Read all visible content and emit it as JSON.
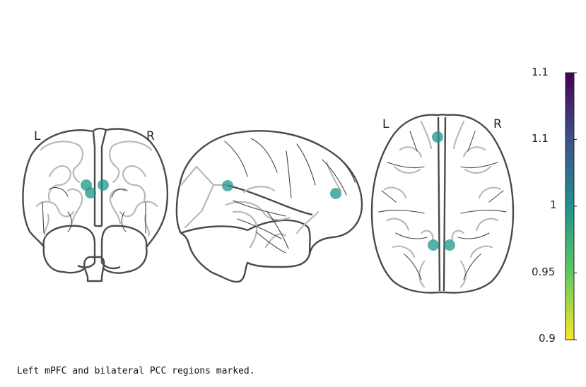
{
  "views": {
    "coronal": {
      "left_label": "L",
      "right_label": "R"
    },
    "sagittal": {},
    "axial": {
      "left_label": "L",
      "right_label": "R"
    }
  },
  "markers": {
    "color": "#1f968b",
    "opacity": 0.75,
    "regions": [
      "mPFC",
      "PCC-left",
      "PCC-right"
    ]
  },
  "colorbar": {
    "colormap": "viridis",
    "ticks": [
      "1.1",
      "1.1",
      "1",
      "0.95",
      "0.9"
    ],
    "colors": [
      "#440154",
      "#3b528b",
      "#21918c",
      "#5ec962",
      "#fde725"
    ]
  },
  "caption": "Left mPFC and bilateral PCC regions marked."
}
